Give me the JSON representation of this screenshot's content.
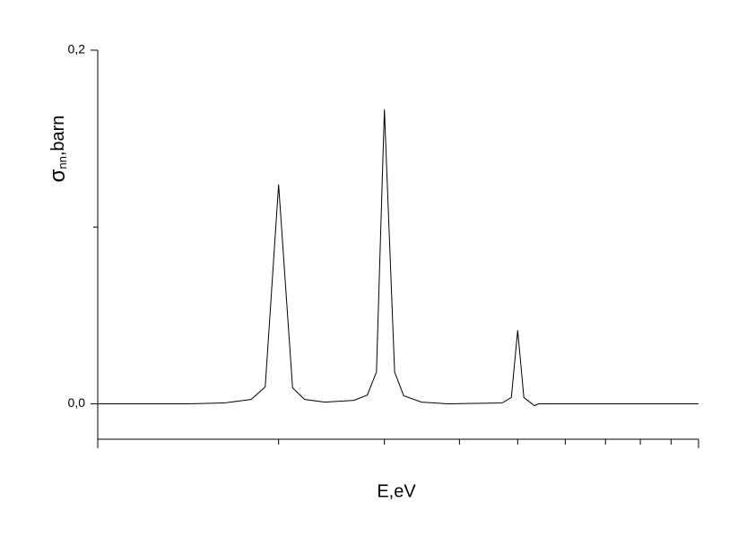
{
  "chart_data": {
    "type": "line",
    "x_label": "E,eV",
    "y_label_symbol": "σ",
    "y_label_subscript": "nn",
    "y_label_unit": ",barn",
    "x": [
      1,
      1.415,
      1.623,
      1.8,
      1.9,
      2,
      2.11,
      2.21,
      2.39,
      2.67,
      2.81,
      2.91,
      3,
      3.12,
      3.23,
      3.46,
      3.83,
      4.71,
      4.88,
      5,
      5.12,
      5.33,
      5.42,
      10
    ],
    "values": [
      0,
      0,
      0.0005,
      0.0025,
      0.0096,
      0.124,
      0.0091,
      0.0025,
      0.001,
      0.002,
      0.005,
      0.018,
      0.1665,
      0.018,
      0.0046,
      0.001,
      0,
      0.0005,
      0.0036,
      0.0416,
      0.0036,
      -0.001,
      0,
      0
    ],
    "color": "#000000",
    "xscale": "log",
    "xlim": [
      1,
      10
    ],
    "xticks": [
      1,
      2,
      3,
      4,
      5,
      6,
      7,
      8,
      9,
      10
    ],
    "ylim": [
      -0.02,
      0.2
    ],
    "yticks": [
      {
        "value": 0,
        "label": "0,0"
      },
      {
        "value": 0.2,
        "label": "0,2"
      }
    ],
    "y_minor_ticks": [
      0.1
    ]
  }
}
